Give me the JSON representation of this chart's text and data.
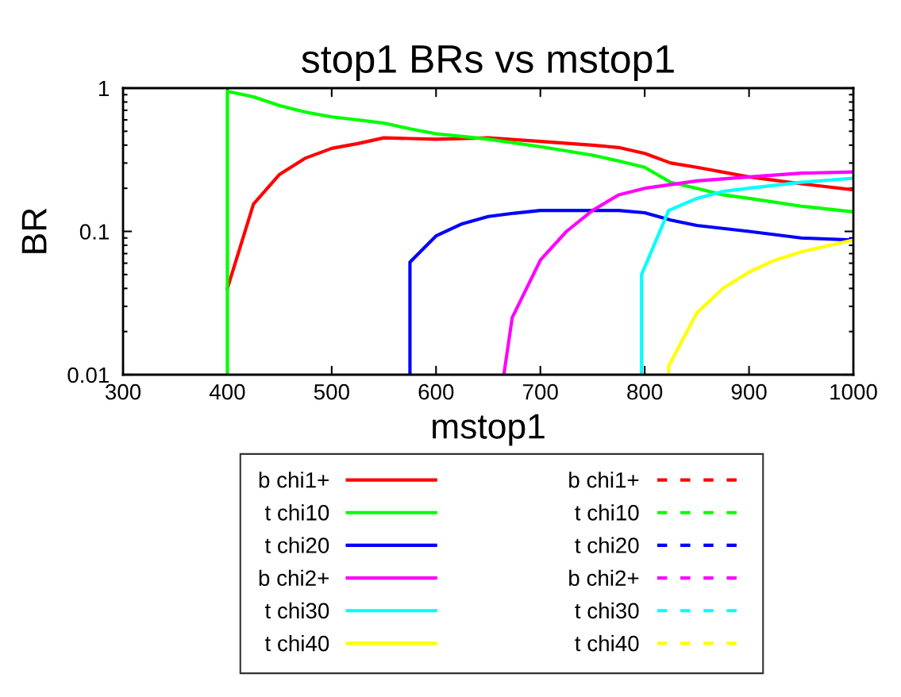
{
  "chart_data": {
    "type": "line",
    "title": "stop1 BRs vs mstop1",
    "xlabel": "mstop1",
    "ylabel": "BR",
    "log": "y",
    "xlim": [
      300,
      1000
    ],
    "xticks": [
      300,
      400,
      500,
      600,
      700,
      800,
      900,
      1000
    ],
    "ylim": [
      0.01,
      1
    ],
    "yticks": [
      0.01,
      0.1,
      1
    ],
    "grid": false,
    "legend": "bottom",
    "line_style": "solid",
    "marker": "none",
    "series": [
      {
        "name": "b chi1+",
        "color": "#ff0000",
        "x": [
          400,
          425,
          450,
          475,
          500,
          525,
          550,
          575,
          600,
          650,
          700,
          750,
          775,
          800,
          825,
          850,
          900,
          950,
          1000
        ],
        "values": [
          0.04,
          0.155,
          0.25,
          0.325,
          0.38,
          0.41,
          0.45,
          0.445,
          0.44,
          0.45,
          0.425,
          0.4,
          0.385,
          0.35,
          0.3,
          0.28,
          0.24,
          0.215,
          0.195
        ]
      },
      {
        "name": "t chi10",
        "color": "#00ff00",
        "x": [
          400,
          400,
          425,
          450,
          475,
          500,
          525,
          550,
          575,
          600,
          625,
          650,
          700,
          750,
          775,
          800,
          825,
          850,
          875,
          900,
          950,
          1000
        ],
        "values": [
          0.01,
          0.95,
          0.87,
          0.755,
          0.68,
          0.63,
          0.6,
          0.57,
          0.52,
          0.48,
          0.46,
          0.44,
          0.39,
          0.34,
          0.31,
          0.28,
          0.22,
          0.2,
          0.18,
          0.17,
          0.15,
          0.137
        ]
      },
      {
        "name": "t chi20",
        "color": "#0000ff",
        "x": [
          575,
          575,
          600,
          625,
          650,
          675,
          700,
          775,
          800,
          825,
          850,
          900,
          950,
          1000
        ],
        "values": [
          0.01,
          0.061,
          0.093,
          0.113,
          0.127,
          0.134,
          0.14,
          0.14,
          0.135,
          0.12,
          0.11,
          0.1,
          0.09,
          0.087
        ]
      },
      {
        "name": "b chi2+",
        "color": "#ff00ff",
        "x": [
          665,
          673,
          700,
          725,
          750,
          775,
          800,
          850,
          900,
          950,
          1000
        ],
        "values": [
          0.01,
          0.025,
          0.063,
          0.1,
          0.14,
          0.18,
          0.2,
          0.225,
          0.24,
          0.255,
          0.26
        ]
      },
      {
        "name": "t chi30",
        "color": "#00ffff",
        "x": [
          797,
          797,
          823,
          850,
          875,
          900,
          950,
          1000
        ],
        "values": [
          0.01,
          0.05,
          0.14,
          0.17,
          0.19,
          0.2,
          0.22,
          0.235
        ]
      },
      {
        "name": "t chi40",
        "color": "#ffff00",
        "x": [
          823,
          823,
          850,
          875,
          900,
          925,
          950,
          1000
        ],
        "values": [
          0.01,
          0.0115,
          0.027,
          0.04,
          0.052,
          0.063,
          0.072,
          0.087
        ]
      },
      {
        "name": "b chi1+",
        "color": "#ff0000",
        "line_style": "dashed"
      },
      {
        "name": "t chi10",
        "color": "#00ff00",
        "line_style": "dashed"
      },
      {
        "name": "t chi20",
        "color": "#0000ff",
        "line_style": "dashed"
      },
      {
        "name": "b chi2+",
        "color": "#ff00ff",
        "line_style": "dashed"
      },
      {
        "name": "t chi30",
        "color": "#00ffff",
        "line_style": "dashed"
      },
      {
        "name": "t chi40",
        "color": "#ffff00",
        "line_style": "dashed"
      }
    ]
  }
}
